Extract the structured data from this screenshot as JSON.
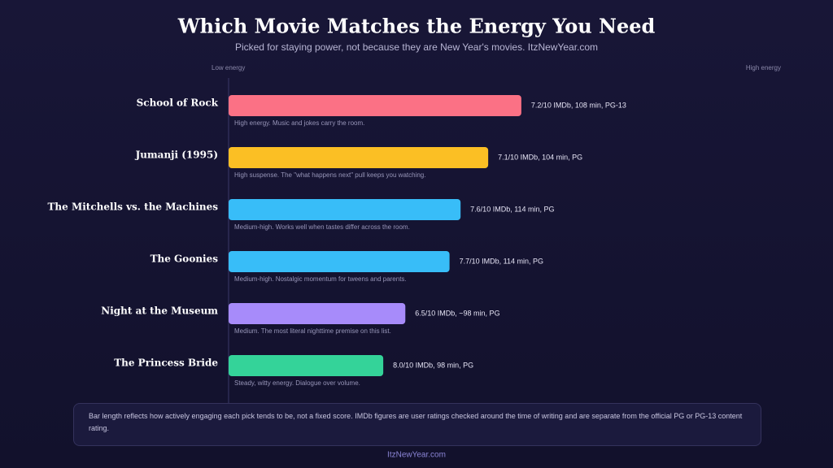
{
  "chart_data": {
    "type": "bar",
    "orientation": "horizontal",
    "title": "Which Movie Matches the Energy You Need",
    "subtitle": "Picked for staying power, not because they are New Year's movies. ItzNewYear.com",
    "axis_low_label": "Low energy",
    "axis_high_label": "High energy",
    "categories": [
      "School of Rock",
      "Jumanji (1995)",
      "The Mitchells vs. the Machines",
      "The Goonies",
      "Night at the Museum",
      "The Princess Bride"
    ],
    "values": [
      53,
      47,
      42,
      40,
      32,
      28
    ],
    "xlim": [
      0,
      100
    ],
    "colors": [
      "#fb7185",
      "#fbbf24",
      "#38bdf8",
      "#38bdf8",
      "#a78bfa",
      "#34d399"
    ],
    "details": [
      "7.2/10 IMDb, 108 min, PG-13",
      "7.1/10 IMDb, 104 min, PG",
      "7.6/10 IMDb, 114 min, PG",
      "7.7/10 IMDb, 114 min, PG",
      "6.5/10 IMDb, ~98 min, PG",
      "8.0/10 IMDb, 98 min, PG"
    ],
    "notes": [
      "High energy. Music and jokes carry the room.",
      "High suspense. The \"what happens next\" pull keeps you watching.",
      "Medium-high. Works well when tastes differ across the room.",
      "Medium-high. Nostalgic momentum for tweens and parents.",
      "Medium. The most literal nighttime premise on this list.",
      "Steady, witty energy. Dialogue over volume."
    ],
    "footnote": "Bar length reflects how actively engaging each pick tends to be, not a fixed score. IMDb figures are user ratings checked around the time of writing and are separate from the official PG or PG-13 content rating.",
    "footer": "ItzNewYear.com"
  }
}
